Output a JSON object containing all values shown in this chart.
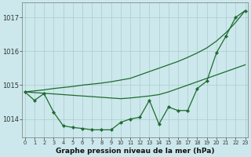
{
  "x": [
    0,
    1,
    2,
    3,
    4,
    5,
    6,
    7,
    8,
    9,
    10,
    11,
    12,
    13,
    14,
    15,
    16,
    17,
    18,
    19,
    20,
    21,
    22,
    23
  ],
  "y_main": [
    1014.8,
    1014.55,
    1014.75,
    1014.2,
    1013.8,
    1013.75,
    1013.72,
    1013.68,
    1013.68,
    1013.68,
    1013.9,
    1014.0,
    1014.05,
    1014.55,
    1013.85,
    1014.35,
    1014.25,
    1014.25,
    1014.9,
    1015.12,
    1015.95,
    1016.45,
    1017.0,
    1017.2
  ],
  "y_upper": [
    1014.8,
    1014.83,
    1014.86,
    1014.9,
    1014.93,
    1014.96,
    1015.0,
    1015.03,
    1015.06,
    1015.1,
    1015.15,
    1015.2,
    1015.3,
    1015.4,
    1015.5,
    1015.6,
    1015.7,
    1015.82,
    1015.95,
    1016.1,
    1016.3,
    1016.55,
    1016.85,
    1017.2
  ],
  "y_lower": [
    1014.8,
    1014.78,
    1014.76,
    1014.74,
    1014.72,
    1014.7,
    1014.68,
    1014.66,
    1014.64,
    1014.62,
    1014.6,
    1014.62,
    1014.65,
    1014.68,
    1014.72,
    1014.8,
    1014.9,
    1015.0,
    1015.1,
    1015.2,
    1015.3,
    1015.4,
    1015.5,
    1015.6
  ],
  "background_color": "#cce8ec",
  "grid_color": "#aacccc",
  "line_color": "#1e6b2e",
  "title": "Graphe pression niveau de la mer (hPa)",
  "ylim": [
    1013.45,
    1017.45
  ],
  "yticks": [
    1014,
    1015,
    1016,
    1017
  ],
  "xticks": [
    0,
    1,
    2,
    3,
    4,
    5,
    6,
    7,
    8,
    9,
    10,
    11,
    12,
    13,
    14,
    15,
    16,
    17,
    18,
    19,
    20,
    21,
    22,
    23
  ],
  "figwidth": 3.2,
  "figheight": 2.0,
  "dpi": 100
}
